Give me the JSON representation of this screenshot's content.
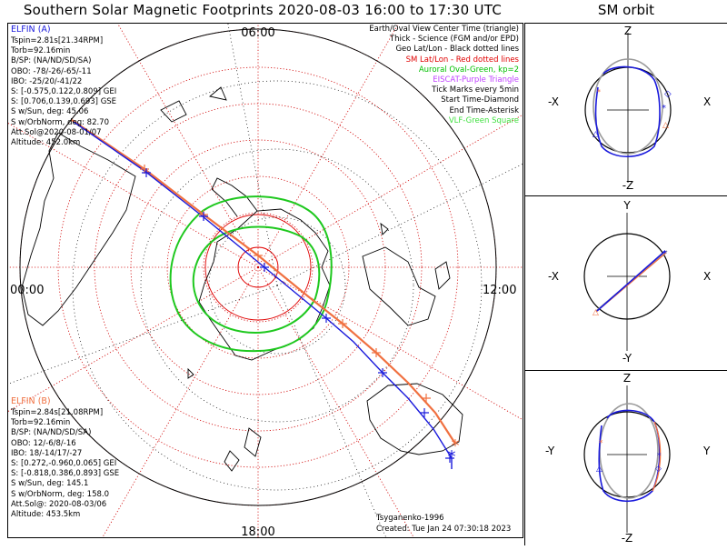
{
  "title": "Southern Solar Magnetic Footprints 2020-08-03 16:00 to 17:30 UTC",
  "orbit_title": "SM orbit",
  "clock_labels": {
    "top": "06:00",
    "left": "00:00",
    "right": "12:00",
    "bottom": "18:00"
  },
  "elfin_a": {
    "name": "ELFIN (A)",
    "color": "#1a1adc",
    "lines": [
      "Tspin=2.81s[21.34RPM]",
      "Torb=92.16min",
      "B/SP: (NA/ND/SD/SA)",
      "OBO: -78/-26/-65/-11",
      "IBO: -25/20/-41/22",
      "S: [-0.575,0.122,0.809] GEI",
      "S: [0.706,0.139,0.693] GSE",
      "S w/Sun, deg: 45.06",
      "S w/OrbNorm, deg: 82.70",
      "Att.Sol@2020-08-01/07",
      "Altitude: 452.0km"
    ]
  },
  "elfin_b": {
    "name": "ELFIN (B)",
    "color": "#f07040",
    "lines": [
      "Tspin=2.84s[21.08RPM]",
      "Torb=92.16min",
      "B/SP: (NA/ND/SD/SA)",
      "OBO: 12/-6/8/-16",
      "IBO: 18/-14/17/-27",
      "S: [0.272,-0.960,0.065] GEI",
      "S: [-0.818,0.386,0.893] GSE",
      "S w/Sun, deg: 145.1",
      "S w/OrbNorm, deg: 158.0",
      "Att.Sol@: 2020-08-03/06",
      "Altitude: 453.5km"
    ]
  },
  "legend": [
    {
      "text": "Earth/Oval View Center Time (triangle)",
      "color": "#000000"
    },
    {
      "text": "Thick - Science (FGM and/or EPD)",
      "color": "#000000"
    },
    {
      "text": "Geo Lat/Lon - Black dotted lines",
      "color": "#000000"
    },
    {
      "text": "SM Lat/Lon - Red dotted lines",
      "color": "#e00000"
    },
    {
      "text": "Auroral Oval-Green, kp=2",
      "color": "#00c000"
    },
    {
      "text": "EISCAT-Purple Triangle",
      "color": "#c040ff"
    },
    {
      "text": "Tick Marks every 5min",
      "color": "#000000"
    },
    {
      "text": "Start Time-Diamond",
      "color": "#000000"
    },
    {
      "text": "End Time-Asterisk",
      "color": "#000000"
    },
    {
      "text": "VLF-Green Square",
      "color": "#40e040"
    }
  ],
  "credit": "Tsyganenko-1996",
  "created": "Created: Tue Jan 24 07:30:18 2023",
  "orbit_panels": [
    {
      "top": "Z",
      "bottom": "-Z",
      "left": "-X",
      "right": "X"
    },
    {
      "top": "Y",
      "bottom": "-Y",
      "left": "-X",
      "right": "X"
    },
    {
      "top": "Z",
      "bottom": "-Z",
      "left": "-Y",
      "right": "Y"
    }
  ]
}
